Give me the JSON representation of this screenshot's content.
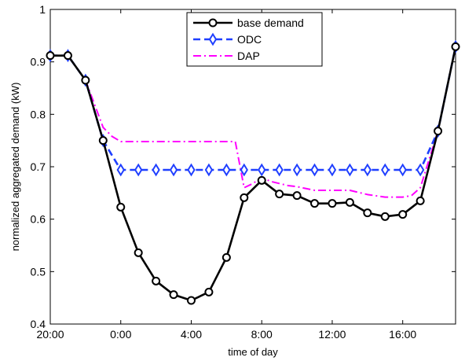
{
  "chart_data": {
    "type": "line",
    "xlabel": "time of day",
    "ylabel": "normalized aggregated demand (kW)",
    "ylim": [
      0.4,
      1.0
    ],
    "xlim": [
      20,
      43
    ],
    "grid": false,
    "legend_placement": "top-center",
    "x_ticks": [
      {
        "value": 20,
        "label": "20:00"
      },
      {
        "value": 24,
        "label": "0:00"
      },
      {
        "value": 28,
        "label": "4:00"
      },
      {
        "value": 32,
        "label": "8:00"
      },
      {
        "value": 36,
        "label": "12:00"
      },
      {
        "value": 40,
        "label": "16:00"
      }
    ],
    "y_ticks": [
      {
        "value": 0.4,
        "label": "0.4"
      },
      {
        "value": 0.5,
        "label": "0.5"
      },
      {
        "value": 0.6,
        "label": "0.6"
      },
      {
        "value": 0.7,
        "label": "0.7"
      },
      {
        "value": 0.8,
        "label": "0.8"
      },
      {
        "value": 0.9,
        "label": "0.9"
      },
      {
        "value": 1.0,
        "label": "1"
      }
    ],
    "series": [
      {
        "name": "base demand",
        "color": "#000000",
        "style": "solid",
        "marker": "circle",
        "x": [
          20,
          21,
          22,
          23,
          24,
          25,
          26,
          27,
          28,
          29,
          30,
          31,
          32,
          33,
          34,
          35,
          36,
          37,
          38,
          39,
          40,
          41,
          42,
          43
        ],
        "values": [
          0.912,
          0.912,
          0.865,
          0.75,
          0.623,
          0.536,
          0.482,
          0.456,
          0.445,
          0.461,
          0.527,
          0.641,
          0.674,
          0.648,
          0.645,
          0.63,
          0.63,
          0.632,
          0.612,
          0.605,
          0.609,
          0.635,
          0.768,
          0.929
        ]
      },
      {
        "name": "ODC",
        "color": "#1f3fff",
        "style": "dashed",
        "marker": "diamond",
        "x": [
          20,
          21,
          22,
          23,
          24,
          25,
          26,
          27,
          28,
          29,
          30,
          31,
          32,
          33,
          34,
          35,
          36,
          37,
          38,
          39,
          40,
          41,
          42,
          43
        ],
        "values": [
          0.912,
          0.912,
          0.865,
          0.75,
          0.694,
          0.694,
          0.694,
          0.694,
          0.694,
          0.694,
          0.694,
          0.694,
          0.694,
          0.694,
          0.694,
          0.694,
          0.694,
          0.694,
          0.694,
          0.694,
          0.694,
          0.694,
          0.768,
          0.929
        ]
      },
      {
        "name": "DAP",
        "color": "#ff00ff",
        "style": "dashdot",
        "marker": "none",
        "x": [
          20,
          21,
          22,
          23,
          23.5,
          24,
          25,
          26,
          27,
          28,
          29,
          30,
          30.5,
          31,
          31.5,
          32,
          32.5,
          33,
          33.5,
          34,
          35,
          36,
          37,
          38,
          39,
          40,
          40.5,
          41,
          42,
          43
        ],
        "values": [
          0.912,
          0.912,
          0.865,
          0.775,
          0.758,
          0.748,
          0.748,
          0.748,
          0.748,
          0.748,
          0.748,
          0.748,
          0.748,
          0.66,
          0.668,
          0.68,
          0.672,
          0.668,
          0.664,
          0.662,
          0.655,
          0.655,
          0.655,
          0.647,
          0.642,
          0.642,
          0.645,
          0.66,
          0.768,
          0.929
        ]
      }
    ]
  }
}
